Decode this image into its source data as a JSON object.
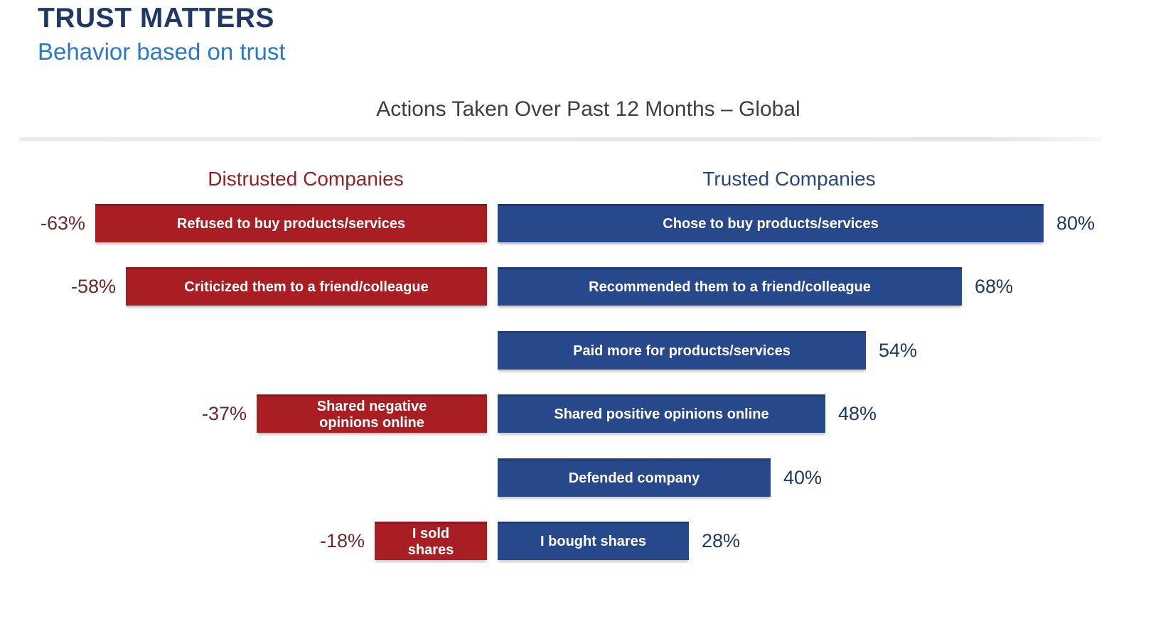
{
  "page": {
    "title": "TRUST MATTERS",
    "subtitle": "Behavior based on trust"
  },
  "chart": {
    "left_header": "Distrusted Companies",
    "right_header": "Trusted Companies"
  },
  "chart_data": {
    "type": "bar",
    "orientation": "horizontal-diverging",
    "title": "Actions Taken Over Past 12 Months – Global",
    "units": "percent",
    "xlim": [
      -70,
      85
    ],
    "grid": false,
    "legend_position": "column-headers",
    "series": [
      {
        "name": "Distrusted Companies",
        "color": "#A91E23",
        "values": [
          -63,
          -58,
          null,
          -37,
          null,
          -18
        ]
      },
      {
        "name": "Trusted Companies",
        "color": "#27498B",
        "values": [
          80,
          68,
          54,
          48,
          40,
          28
        ]
      }
    ],
    "categories_left": [
      "Refused to buy products/services",
      "Criticized them to a friend/colleague",
      null,
      "Shared negative\nopinions online",
      null,
      "I sold\nshares"
    ],
    "categories_right": [
      "Chose to buy products/services",
      "Recommended them to a friend/colleague",
      "Paid more for products/services",
      "Shared positive opinions online",
      "Defended company",
      "I bought shares"
    ],
    "value_labels_left": [
      "-63%",
      "-58%",
      null,
      "-37%",
      null,
      "-18%"
    ],
    "value_labels_right": [
      "80%",
      "68%",
      "54%",
      "48%",
      "40%",
      "28%"
    ]
  },
  "colors": {
    "title_navy": "#1F3864",
    "subtitle_blue": "#2878CE",
    "distrusted_bar": "#A91E23",
    "trusted_bar": "#27498B",
    "distrusted_header": "#8E2327",
    "trusted_header": "#26477E",
    "distrusted_value_label": "#6E2A26",
    "trusted_value_label": "#1F3864",
    "chart_title_gray": "#3F3F3F",
    "divider_gray": "#E8E8E8"
  }
}
